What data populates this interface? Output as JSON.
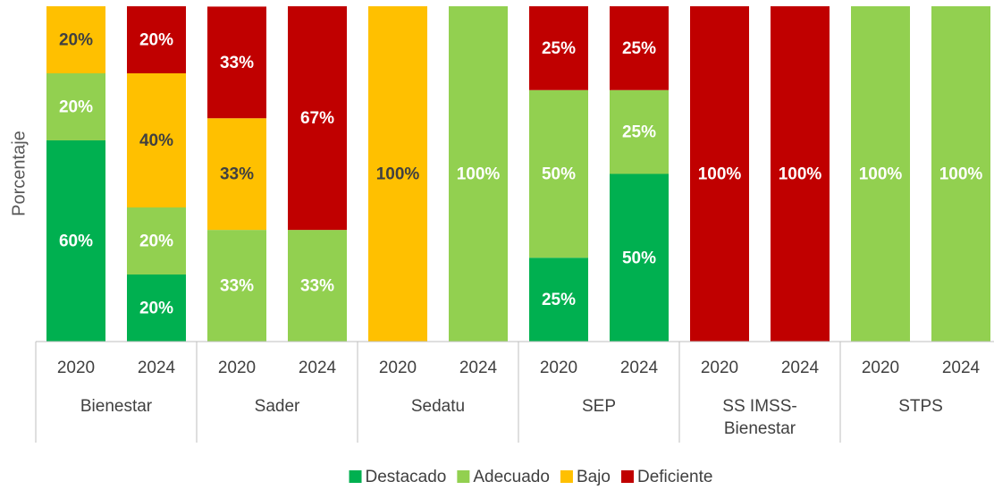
{
  "chart_data": {
    "type": "stacked_bar",
    "y_label": "Porcentaje",
    "categories": [
      "2020",
      "2024",
      "2020",
      "2024",
      "2020",
      "2024",
      "2020",
      "2024",
      "2020",
      "2024",
      "2020",
      "2024"
    ],
    "groups": [
      "Bienestar",
      "Sader",
      "Sedatu",
      "SEP",
      "SS IMSS-Bienestar",
      "STPS"
    ],
    "ylim": [
      0,
      100
    ],
    "series": [
      {
        "name": "Destacado",
        "color": "#00b050",
        "label_color": "#ffffff",
        "values": [
          60,
          20,
          null,
          null,
          null,
          null,
          25,
          50,
          null,
          null,
          null,
          null
        ],
        "value_labels": [
          "60%",
          "20%",
          null,
          null,
          null,
          null,
          "25%",
          "50%",
          null,
          null,
          null,
          null
        ]
      },
      {
        "name": "Adecuado",
        "color": "#92d050",
        "label_color": "#ffffff",
        "values": [
          20,
          20,
          33.3,
          33.3,
          null,
          100,
          50,
          25,
          null,
          null,
          100,
          100
        ],
        "value_labels": [
          "20%",
          "20%",
          "33%",
          "33%",
          null,
          "100%",
          "50%",
          "25%",
          null,
          null,
          "100%",
          "100%"
        ]
      },
      {
        "name": "Bajo",
        "color": "#ffc000",
        "label_color": "#404040",
        "values": [
          20,
          40,
          33.3,
          null,
          100,
          null,
          null,
          null,
          null,
          null,
          null,
          null
        ],
        "value_labels": [
          "20%",
          "40%",
          "33%",
          null,
          "100%",
          null,
          null,
          null,
          null,
          null,
          null,
          null
        ]
      },
      {
        "name": "Deficiente",
        "color": "#c00000",
        "label_color": "#ffffff",
        "values": [
          null,
          20,
          33.3,
          66.7,
          null,
          null,
          25,
          25,
          100,
          100,
          null,
          null
        ],
        "value_labels": [
          null,
          "20%",
          "33%",
          "67%",
          null,
          null,
          "25%",
          "25%",
          "100%",
          "100%",
          null,
          null
        ]
      }
    ]
  }
}
